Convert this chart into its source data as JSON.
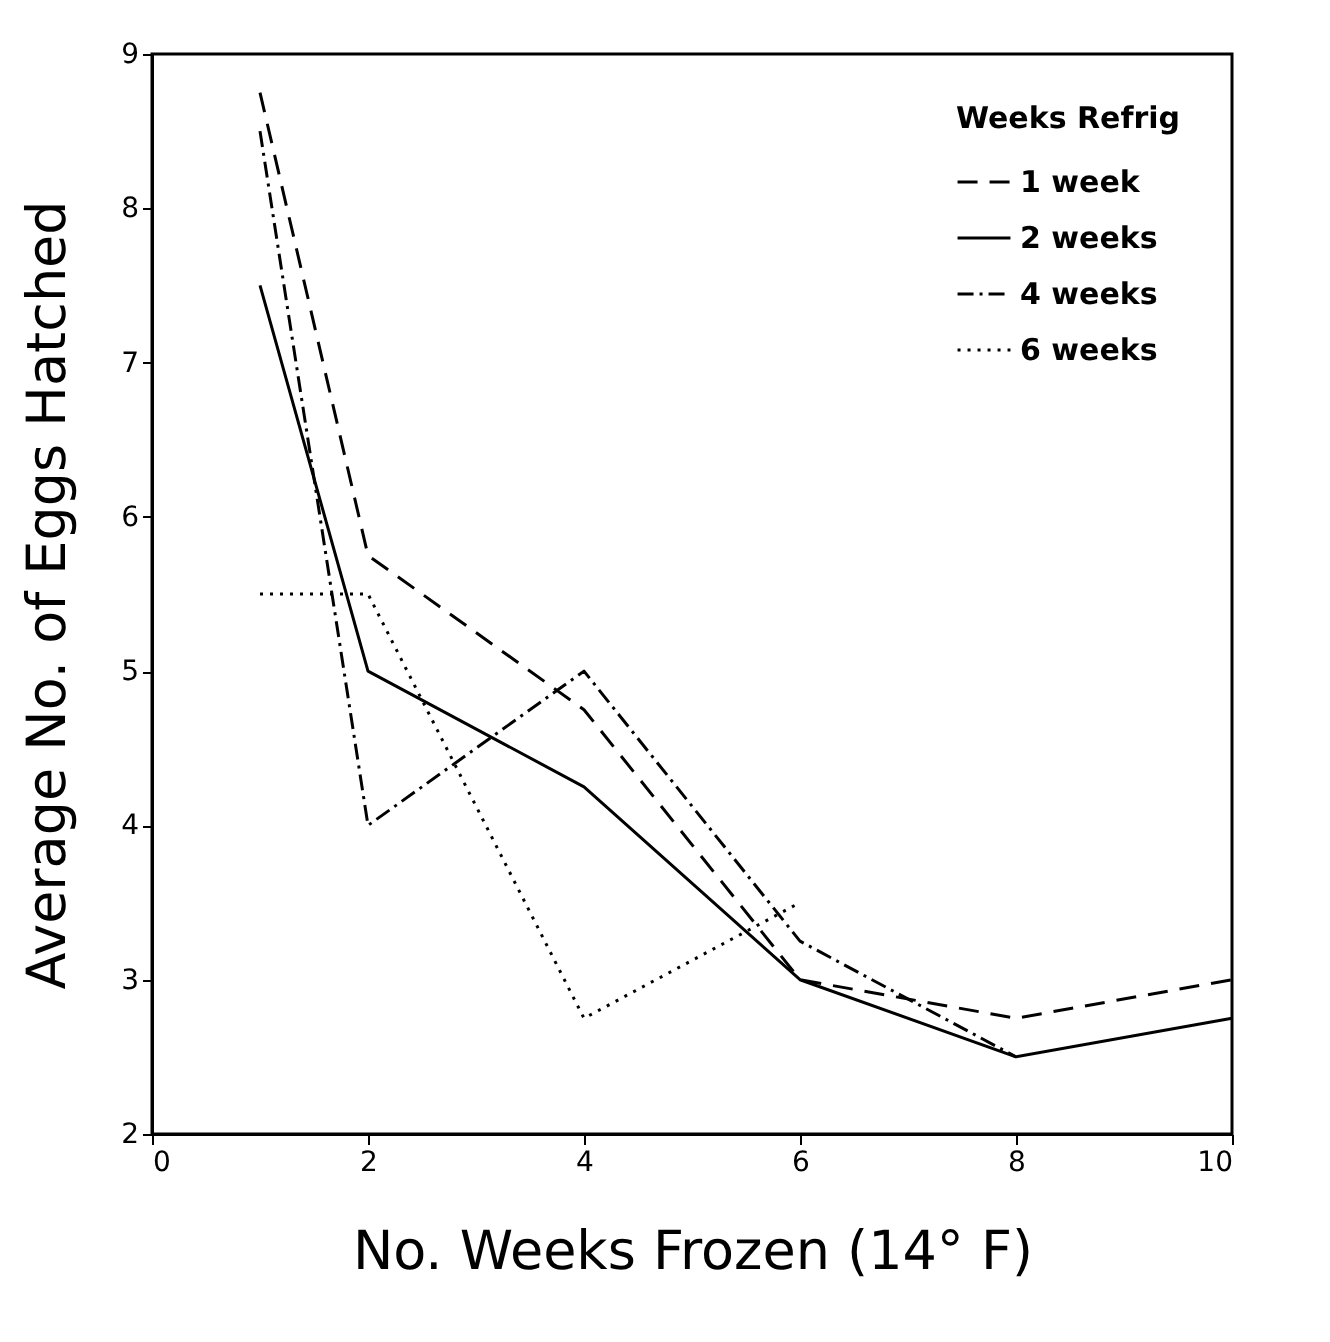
{
  "chart_data": {
    "type": "line",
    "xlabel": "No. Weeks Frozen (14° F)",
    "ylabel": "Average No. of Eggs Hatched",
    "legend_title": "Weeks Refrig",
    "xlim": [
      0,
      10
    ],
    "ylim": [
      2,
      9
    ],
    "xticks": [
      0,
      2,
      4,
      6,
      8,
      10
    ],
    "yticks": [
      2,
      3,
      4,
      5,
      6,
      7,
      8,
      9
    ],
    "grid": false,
    "legend": "top right",
    "marker": "none",
    "series": [
      {
        "name": "1 week",
        "color": "#000000",
        "line_style": "dashed",
        "x": [
          1,
          2,
          4,
          6,
          8,
          10
        ],
        "values": [
          8.75,
          5.75,
          4.75,
          3.0,
          2.75,
          3.0
        ]
      },
      {
        "name": "2 weeks",
        "color": "#000000",
        "line_style": "solid",
        "x": [
          1,
          2,
          4,
          6,
          8,
          10
        ],
        "values": [
          7.5,
          5.0,
          4.25,
          3.0,
          2.5,
          2.75
        ]
      },
      {
        "name": "4 weeks",
        "color": "#000000",
        "line_style": "dashdot",
        "x": [
          1,
          2,
          4,
          6,
          8
        ],
        "values": [
          8.5,
          4.0,
          5.0,
          3.25,
          2.5
        ]
      },
      {
        "name": "6 weeks",
        "color": "#000000",
        "line_style": "dotted",
        "x": [
          1,
          2,
          4,
          6
        ],
        "values": [
          5.5,
          5.5,
          2.75,
          3.5
        ]
      }
    ]
  }
}
